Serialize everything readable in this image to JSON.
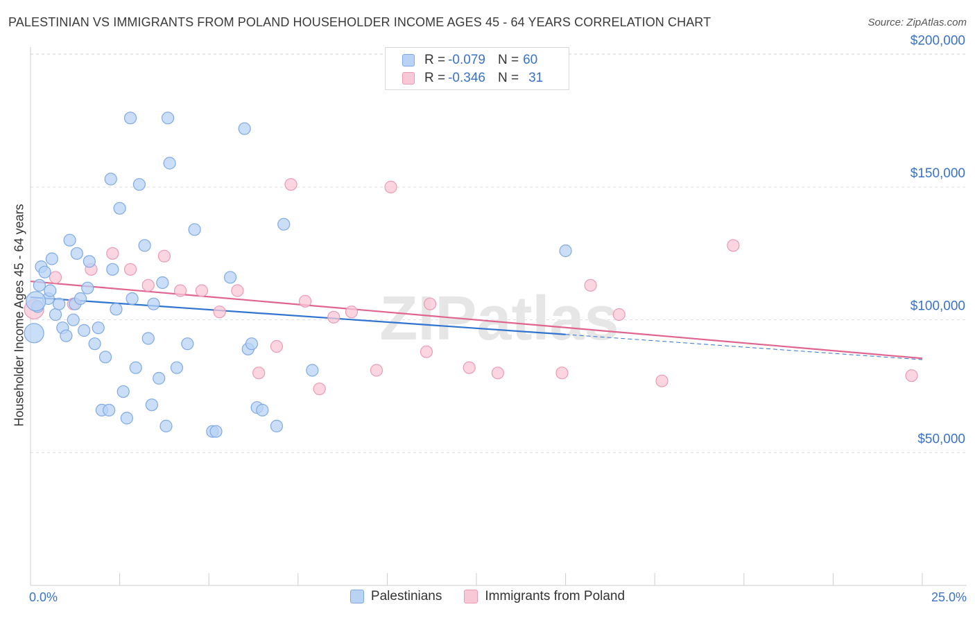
{
  "title": "PALESTINIAN VS IMMIGRANTS FROM POLAND HOUSEHOLDER INCOME AGES 45 - 64 YEARS CORRELATION CHART",
  "source": "Source: ZipAtlas.com",
  "legend_top": [
    {
      "r_label": "R =",
      "r_value": "-0.079",
      "n_label": "N =",
      "n_value": "60"
    },
    {
      "r_label": "R =",
      "r_value": "-0.346",
      "n_label": "N =",
      "n_value": "31"
    }
  ],
  "legend_bottom": [
    "Palestinians",
    "Immigrants from Poland"
  ],
  "colors": {
    "blue_fill": "#b9d3f5",
    "blue_stroke": "#7ea9e4",
    "blue_line": "#2f74d0",
    "pink_fill": "#f9c8d6",
    "pink_stroke": "#ea9ab5",
    "pink_line": "#e0648f",
    "axis_text": "#3a72c9",
    "grid": "#dddddd"
  },
  "watermark": "ZIPatlas",
  "chart_data": {
    "type": "scatter",
    "title": "PALESTINIAN VS IMMIGRANTS FROM POLAND HOUSEHOLDER INCOME AGES 45 - 64 YEARS CORRELATION CHART",
    "xlabel": "",
    "ylabel": "Householder Income Ages 45 - 64 years",
    "xlim": [
      0,
      25
    ],
    "ylim": [
      0,
      210000
    ],
    "x_tick_labels": [
      "0.0%",
      "25.0%"
    ],
    "y_ticks": [
      50000,
      100000,
      150000,
      200000
    ],
    "y_tick_labels": [
      "$50,000",
      "$100,000",
      "$150,000",
      "$200,000"
    ],
    "grid": "horizontal dashed",
    "series": [
      {
        "name": "Palestinians",
        "points": [
          [
            0.1,
            95000
          ],
          [
            0.2,
            105000
          ],
          [
            0.25,
            113000
          ],
          [
            0.3,
            120000
          ],
          [
            0.4,
            118000
          ],
          [
            0.5,
            108000
          ],
          [
            0.55,
            111000
          ],
          [
            0.6,
            123000
          ],
          [
            0.7,
            102000
          ],
          [
            0.8,
            106000
          ],
          [
            0.9,
            97000
          ],
          [
            1.0,
            94000
          ],
          [
            1.1,
            130000
          ],
          [
            1.2,
            100000
          ],
          [
            1.25,
            106000
          ],
          [
            1.3,
            125000
          ],
          [
            1.4,
            108000
          ],
          [
            1.5,
            96000
          ],
          [
            1.6,
            112000
          ],
          [
            1.65,
            122000
          ],
          [
            1.8,
            91000
          ],
          [
            1.9,
            97000
          ],
          [
            2.0,
            66000
          ],
          [
            2.1,
            86000
          ],
          [
            2.2,
            66000
          ],
          [
            2.25,
            153000
          ],
          [
            2.3,
            119000
          ],
          [
            2.4,
            104000
          ],
          [
            2.5,
            142000
          ],
          [
            2.6,
            73000
          ],
          [
            2.7,
            63000
          ],
          [
            2.8,
            176000
          ],
          [
            2.85,
            108000
          ],
          [
            2.95,
            82000
          ],
          [
            3.05,
            151000
          ],
          [
            3.2,
            128000
          ],
          [
            3.3,
            93000
          ],
          [
            3.4,
            68000
          ],
          [
            3.45,
            106000
          ],
          [
            3.6,
            78000
          ],
          [
            3.7,
            114000
          ],
          [
            3.8,
            60000
          ],
          [
            3.85,
            176000
          ],
          [
            3.9,
            159000
          ],
          [
            4.1,
            82000
          ],
          [
            4.4,
            91000
          ],
          [
            4.6,
            134000
          ],
          [
            5.1,
            58000
          ],
          [
            5.2,
            58000
          ],
          [
            5.6,
            116000
          ],
          [
            6.0,
            172000
          ],
          [
            6.1,
            89000
          ],
          [
            6.2,
            91000
          ],
          [
            6.35,
            67000
          ],
          [
            6.5,
            66000
          ],
          [
            6.9,
            60000
          ],
          [
            7.1,
            136000
          ],
          [
            7.9,
            81000
          ],
          [
            15.0,
            126000
          ],
          [
            0.15,
            107000
          ]
        ],
        "trend": {
          "x": [
            0,
            15.0
          ],
          "y": [
            108500,
            94500
          ],
          "dashed_extension_to_x": 25,
          "dashed_extension_y": 85000
        }
      },
      {
        "name": "Immigrants from Poland",
        "points": [
          [
            0.1,
            104000
          ],
          [
            0.7,
            116000
          ],
          [
            1.2,
            106000
          ],
          [
            1.7,
            119000
          ],
          [
            2.3,
            125000
          ],
          [
            2.8,
            119000
          ],
          [
            3.3,
            113000
          ],
          [
            3.75,
            124000
          ],
          [
            4.2,
            111000
          ],
          [
            4.8,
            111000
          ],
          [
            5.3,
            103000
          ],
          [
            5.8,
            111000
          ],
          [
            6.4,
            80000
          ],
          [
            6.9,
            90000
          ],
          [
            7.3,
            151000
          ],
          [
            7.7,
            107000
          ],
          [
            8.1,
            74000
          ],
          [
            8.5,
            101000
          ],
          [
            9.0,
            103000
          ],
          [
            9.7,
            81000
          ],
          [
            10.1,
            150000
          ],
          [
            11.1,
            88000
          ],
          [
            11.2,
            106000
          ],
          [
            12.3,
            82000
          ],
          [
            13.1,
            80000
          ],
          [
            14.9,
            80000
          ],
          [
            15.7,
            113000
          ],
          [
            16.5,
            102000
          ],
          [
            17.7,
            77000
          ],
          [
            19.7,
            128000
          ],
          [
            24.7,
            79000
          ]
        ],
        "trend": {
          "x": [
            0,
            25
          ],
          "y": [
            114500,
            85500
          ]
        }
      }
    ]
  }
}
